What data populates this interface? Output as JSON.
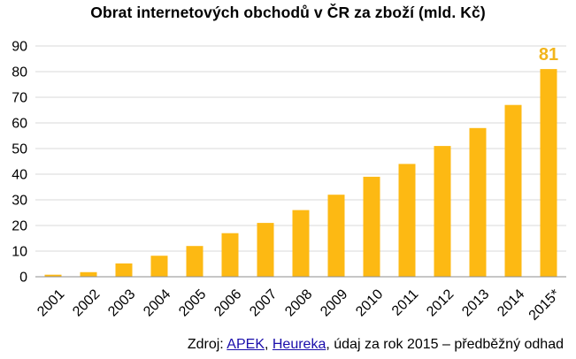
{
  "chart_data": {
    "type": "bar",
    "title": "Obrat internetových obchodů v ČR za zboží (mld. Kč)",
    "xlabel": "",
    "ylabel": "",
    "categories": [
      "2001",
      "2002",
      "2003",
      "2004",
      "2005",
      "2006",
      "2007",
      "2008",
      "2009",
      "2010",
      "2011",
      "2012",
      "2013",
      "2014",
      "2015*"
    ],
    "values": [
      0.8,
      1.8,
      5.2,
      8.2,
      12,
      17,
      21,
      26,
      32,
      39,
      44,
      51,
      58,
      67,
      81
    ],
    "ylim": [
      0,
      90
    ],
    "yticks": [
      "0",
      "10",
      "20",
      "30",
      "40",
      "50",
      "60",
      "70",
      "80",
      "90"
    ],
    "grid": true,
    "legend": "none",
    "annotation": {
      "category": "2015*",
      "label": "81"
    },
    "colors": {
      "bar": "#FDB913",
      "grid": "#d9d9d9",
      "annotation": "#F2B51C"
    }
  },
  "source": {
    "prefix": "Zdroj: ",
    "link1": "APEK",
    "sep": ", ",
    "link2": "Heureka",
    "suffix": ", údaj za rok 2015 – předběžný odhad"
  }
}
